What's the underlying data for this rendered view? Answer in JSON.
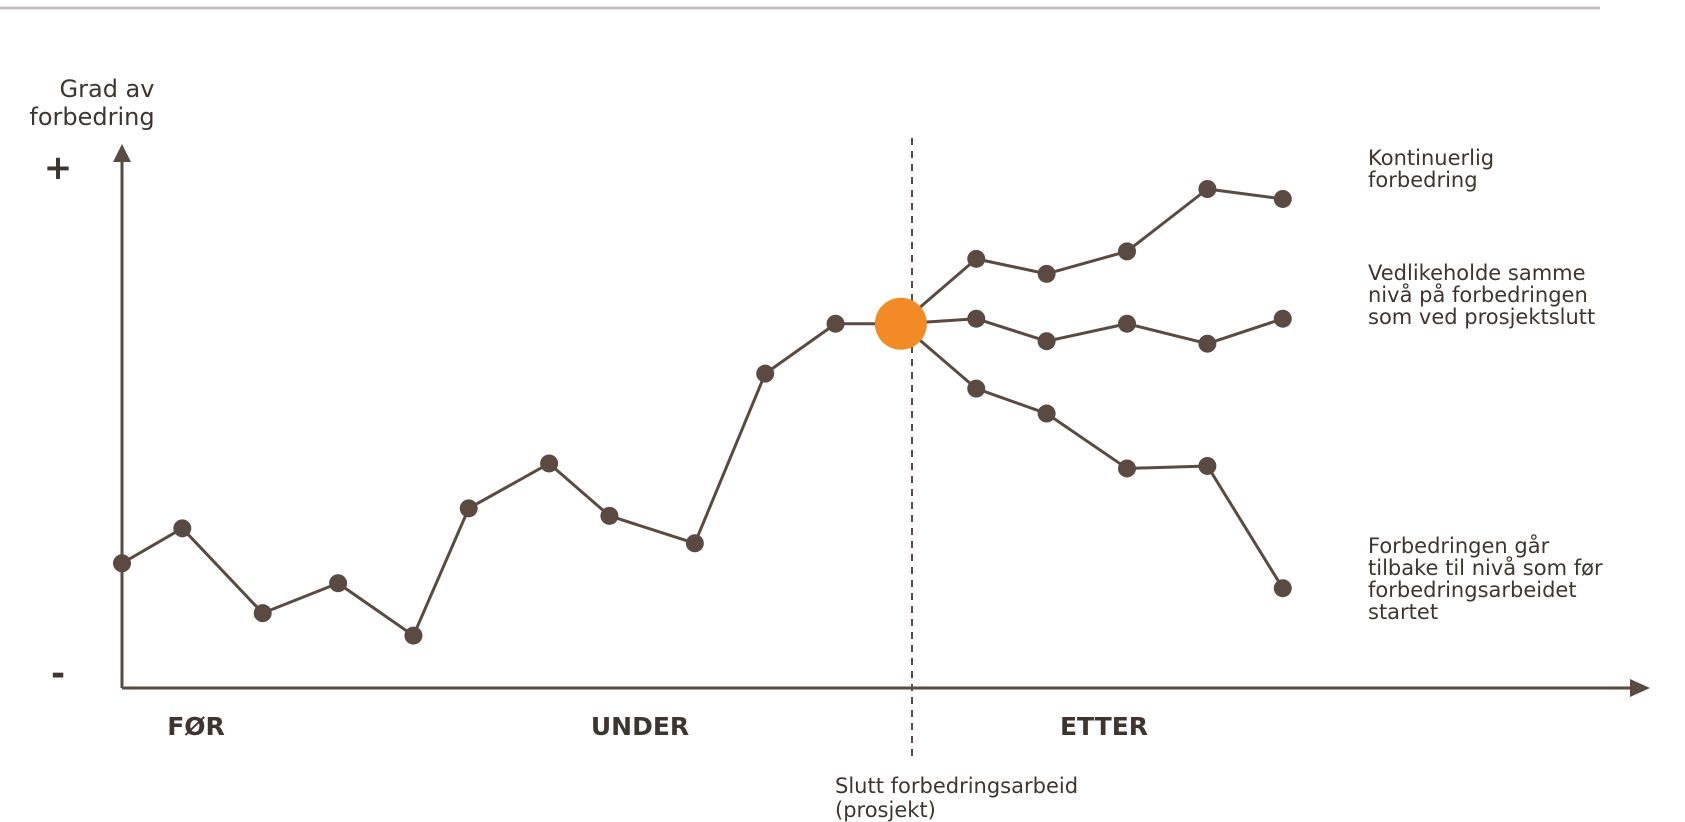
{
  "chart_data": {
    "type": "line",
    "y_axis_label": [
      "Grad av",
      "forbedring"
    ],
    "y_axis_plus": "+",
    "y_axis_minus": "-",
    "phases": [
      "FØR",
      "UNDER",
      "ETTER"
    ],
    "project_end_label": [
      "Slutt forbedringsarbeid",
      "(prosjekt)"
    ],
    "project_end_marker_color": "#f28a26",
    "line_color": "#5a4a42",
    "history": {
      "x": [
        0,
        0.6,
        1.4,
        2.15,
        2.9,
        3.45,
        4.25,
        4.85,
        5.7,
        6.4,
        7.1,
        7.75
      ],
      "y": [
        25,
        32,
        15,
        21,
        10.5,
        36,
        45,
        34.5,
        29,
        63,
        73,
        73
      ]
    },
    "outcomes": [
      {
        "label": [
          "Kontinuerlig",
          "forbedring"
        ],
        "x": [
          7.75,
          8.5,
          9.2,
          10.0,
          10.8,
          11.55
        ],
        "y": [
          73,
          86,
          83,
          87.5,
          100,
          98
        ]
      },
      {
        "label": [
          "Vedlikeholde samme",
          "nivå på forbedringen",
          "som ved prosjektslutt"
        ],
        "x": [
          7.75,
          8.5,
          9.2,
          10.0,
          10.8,
          11.55
        ],
        "y": [
          73,
          74,
          69.5,
          73,
          69,
          74
        ]
      },
      {
        "label": [
          "Forbedringen går",
          "tilbake til nivå som før",
          "forbedringsarbeidet",
          "startet"
        ],
        "x": [
          7.75,
          8.5,
          9.2,
          10.0,
          10.8,
          11.55
        ],
        "y": [
          73,
          60,
          55,
          44,
          44.5,
          20
        ]
      }
    ],
    "xlim": [
      0,
      14
    ],
    "ylim": [
      0,
      100
    ]
  }
}
